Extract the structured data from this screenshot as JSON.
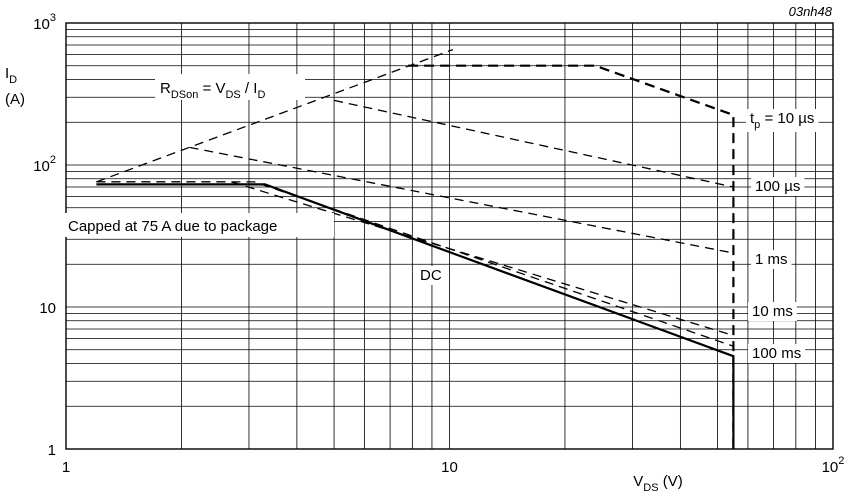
{
  "chart_data": {
    "type": "line",
    "chart_code": "03nh48",
    "xscale": "log",
    "yscale": "log",
    "xlim": [
      1,
      100
    ],
    "ylim": [
      1,
      1000
    ],
    "grid": true,
    "x_tick_labels": [
      {
        "value": 1,
        "label": "1"
      },
      {
        "value": 10,
        "label": "10"
      },
      {
        "value": 100,
        "label": "10",
        "exp": "2"
      }
    ],
    "y_tick_labels": [
      {
        "value": 1,
        "label": "1"
      },
      {
        "value": 10,
        "label": "10"
      },
      {
        "value": 100,
        "label": "10",
        "exp": "2"
      },
      {
        "value": 1000,
        "label": "10",
        "exp": "3"
      }
    ],
    "xlabel": {
      "main": "V",
      "sub": "DS",
      "unit": " (V)"
    },
    "ylabel": {
      "main": "I",
      "sub": "D",
      "unit": "(A)"
    },
    "rdson_label": {
      "a": "R",
      "a_sub": "DSon",
      "b": " = V",
      "b_sub": "DS",
      "c": " / I",
      "c_sub": "D"
    },
    "cap_label": "Capped at 75 A due to package",
    "series": [
      {
        "name": "tp = 10 µs",
        "label": {
          "main": "t",
          "sub": "p",
          "rest": " = 10 µs"
        },
        "style": "boundary",
        "x": [
          7.8,
          24,
          55,
          55
        ],
        "y": [
          500,
          500,
          225,
          1
        ]
      },
      {
        "name": "100 µs",
        "label": {
          "main": "100 µs"
        },
        "style": "dashed",
        "x": [
          5,
          55
        ],
        "y": [
          285,
          70
        ]
      },
      {
        "name": "1 ms",
        "label": {
          "main": "1 ms"
        },
        "style": "dashed",
        "x": [
          2.1,
          55
        ],
        "y": [
          133,
          24
        ]
      },
      {
        "name": "10 ms",
        "label": {
          "main": "10 ms"
        },
        "style": "dashed",
        "x": [
          1.2,
          2.7,
          55
        ],
        "y": [
          76,
          76,
          6.3
        ]
      },
      {
        "name": "100 ms",
        "label": {
          "main": "100 ms"
        },
        "style": "dashed",
        "x": [
          1.2,
          3.1,
          55
        ],
        "y": [
          76,
          76,
          5.3
        ]
      },
      {
        "name": "DC",
        "label": {
          "main": "DC"
        },
        "style": "solid",
        "x": [
          1.2,
          3.3,
          55,
          55
        ],
        "y": [
          73,
          73,
          4.5,
          1
        ]
      },
      {
        "name": "RDSon limit",
        "style": "dashed",
        "x": [
          1.2,
          10.2
        ],
        "y": [
          76,
          650
        ]
      }
    ]
  }
}
